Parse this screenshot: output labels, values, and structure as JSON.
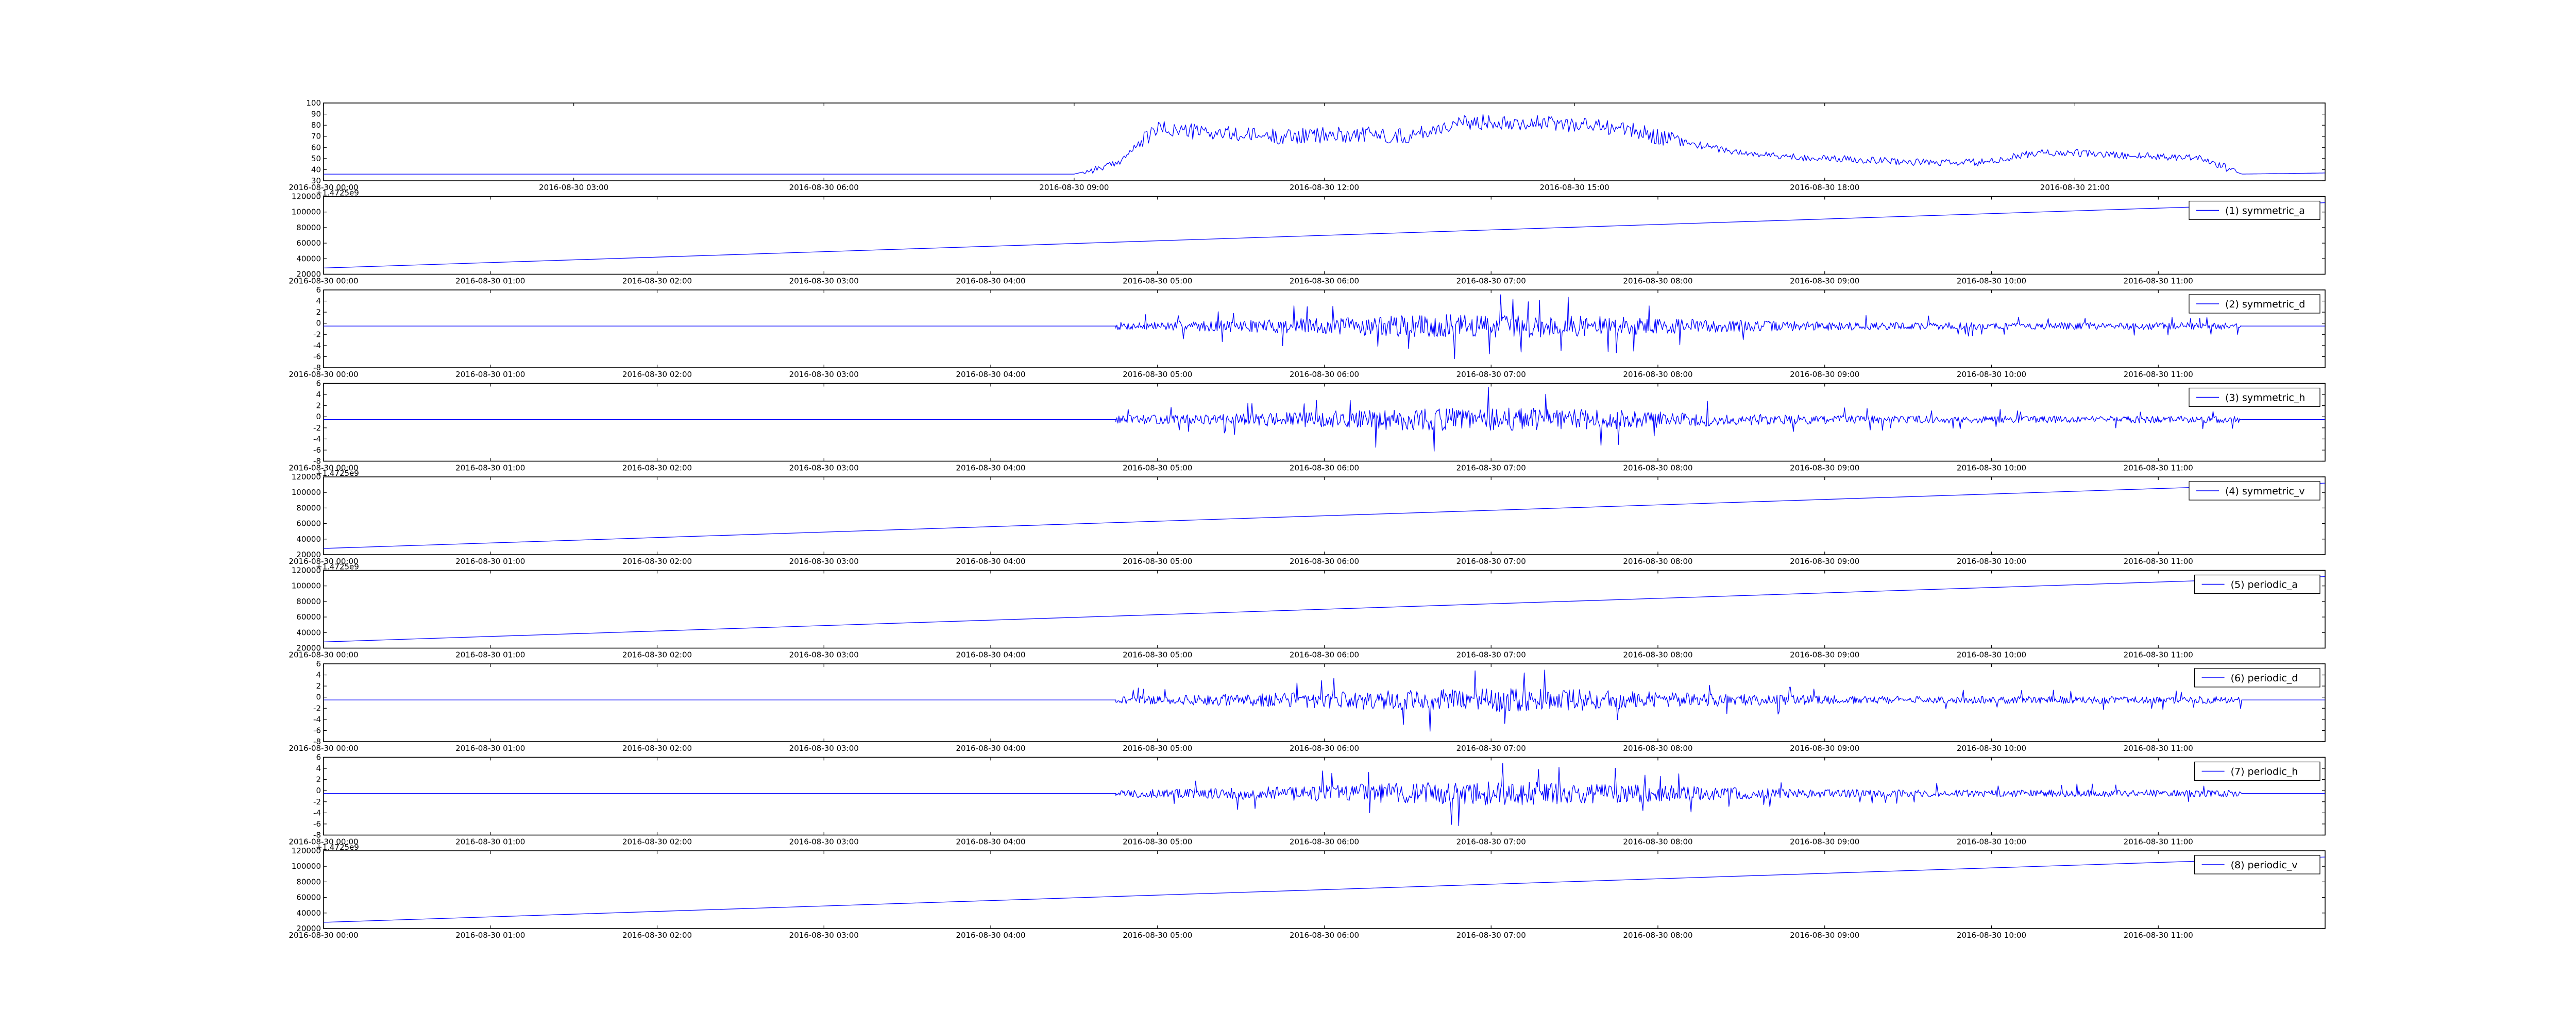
{
  "chart_data": [
    {
      "type": "line",
      "panel": "0",
      "color": "#0000ff",
      "ylim": [
        30,
        100
      ],
      "yticks": [
        30,
        40,
        50,
        60,
        70,
        80,
        90,
        100
      ],
      "xlim": [
        "2016-08-30 00:00",
        "2016-08-31 00:00"
      ],
      "xticks": [
        "2016-08-30 00:00",
        "2016-08-30 03:00",
        "2016-08-30 06:00",
        "2016-08-30 09:00",
        "2016-08-30 12:00",
        "2016-08-30 15:00",
        "2016-08-30 18:00",
        "2016-08-30 21:00"
      ],
      "legend": "",
      "y_offset_label": "",
      "series": [
        {
          "name": "",
          "x": [
            "2016-08-30 00:00",
            "2016-08-30 09:00",
            "2016-08-30 09:30",
            "2016-08-30 10:00",
            "2016-08-30 10:30",
            "2016-08-30 11:00",
            "2016-08-30 11:30",
            "2016-08-30 12:00",
            "2016-08-30 12:30",
            "2016-08-30 13:00",
            "2016-08-30 13:30",
            "2016-08-30 14:00",
            "2016-08-30 14:30",
            "2016-08-30 15:00",
            "2016-08-30 15:30",
            "2016-08-30 16:00",
            "2016-08-30 16:30",
            "2016-08-30 17:00",
            "2016-08-30 17:30",
            "2016-08-30 18:00",
            "2016-08-30 18:30",
            "2016-08-30 19:00",
            "2016-08-30 19:30",
            "2016-08-30 20:00",
            "2016-08-30 20:30",
            "2016-08-30 21:00",
            "2016-08-30 21:30",
            "2016-08-30 22:00",
            "2016-08-30 22:30",
            "2016-08-30 23:00",
            "2016-08-31 00:00"
          ],
          "y": [
            36,
            36,
            45,
            77,
            74,
            71,
            70,
            71,
            72,
            70,
            80,
            84,
            82,
            81,
            78,
            70,
            62,
            55,
            52,
            50,
            49,
            47,
            46,
            47,
            55,
            55,
            53,
            52,
            51,
            36,
            37
          ],
          "noise_amplitude": 6
        }
      ]
    },
    {
      "type": "line",
      "panel": "1",
      "color": "#0000ff",
      "ylim": [
        20000,
        120000
      ],
      "yticks": [
        20000,
        40000,
        60000,
        80000,
        100000,
        120000
      ],
      "xlim": [
        "2016-08-30 00:00",
        "2016-08-30 12:00"
      ],
      "xticks": [
        "2016-08-30 00:00",
        "2016-08-30 01:00",
        "2016-08-30 02:00",
        "2016-08-30 03:00",
        "2016-08-30 04:00",
        "2016-08-30 05:00",
        "2016-08-30 06:00",
        "2016-08-30 07:00",
        "2016-08-30 08:00",
        "2016-08-30 09:00",
        "2016-08-30 10:00",
        "2016-08-30 11:00"
      ],
      "legend": "(1) symmetric_a",
      "y_offset_label": "+1.4725e9",
      "series": [
        {
          "name": "(1) symmetric_a",
          "x": [
            "2016-08-30 00:00",
            "2016-08-30 12:00"
          ],
          "y": [
            28000,
            112000
          ]
        }
      ]
    },
    {
      "type": "line",
      "panel": "2",
      "color": "#0000ff",
      "ylim": [
        -8,
        6
      ],
      "yticks": [
        -8,
        -6,
        -4,
        -2,
        0,
        2,
        4,
        6
      ],
      "xlim": [
        "2016-08-30 00:00",
        "2016-08-30 12:00"
      ],
      "xticks": [
        "2016-08-30 00:00",
        "2016-08-30 01:00",
        "2016-08-30 02:00",
        "2016-08-30 03:00",
        "2016-08-30 04:00",
        "2016-08-30 05:00",
        "2016-08-30 06:00",
        "2016-08-30 07:00",
        "2016-08-30 08:00",
        "2016-08-30 09:00",
        "2016-08-30 10:00",
        "2016-08-30 11:00"
      ],
      "legend": "(2) symmetric_d",
      "y_offset_label": "",
      "series": [
        {
          "name": "(2) symmetric_d",
          "baseline": -0.5,
          "noise_start": "2016-08-30 04:45",
          "noise_end": "2016-08-30 11:30",
          "noise_peak": 6,
          "seed": 7
        }
      ]
    },
    {
      "type": "line",
      "panel": "3",
      "color": "#0000ff",
      "ylim": [
        -8,
        6
      ],
      "yticks": [
        -8,
        -6,
        -4,
        -2,
        0,
        2,
        4,
        6
      ],
      "xlim": [
        "2016-08-30 00:00",
        "2016-08-30 12:00"
      ],
      "xticks": [
        "2016-08-30 00:00",
        "2016-08-30 01:00",
        "2016-08-30 02:00",
        "2016-08-30 03:00",
        "2016-08-30 04:00",
        "2016-08-30 05:00",
        "2016-08-30 06:00",
        "2016-08-30 07:00",
        "2016-08-30 08:00",
        "2016-08-30 09:00",
        "2016-08-30 10:00",
        "2016-08-30 11:00"
      ],
      "legend": "(3) symmetric_h",
      "y_offset_label": "",
      "series": [
        {
          "name": "(3) symmetric_h",
          "baseline": -0.5,
          "noise_start": "2016-08-30 04:45",
          "noise_end": "2016-08-30 11:30",
          "noise_peak": 6,
          "seed": 13
        }
      ]
    },
    {
      "type": "line",
      "panel": "4",
      "color": "#0000ff",
      "ylim": [
        20000,
        120000
      ],
      "yticks": [
        20000,
        40000,
        60000,
        80000,
        100000,
        120000
      ],
      "xlim": [
        "2016-08-30 00:00",
        "2016-08-30 12:00"
      ],
      "xticks": [
        "2016-08-30 00:00",
        "2016-08-30 01:00",
        "2016-08-30 02:00",
        "2016-08-30 03:00",
        "2016-08-30 04:00",
        "2016-08-30 05:00",
        "2016-08-30 06:00",
        "2016-08-30 07:00",
        "2016-08-30 08:00",
        "2016-08-30 09:00",
        "2016-08-30 10:00",
        "2016-08-30 11:00"
      ],
      "legend": "(4) symmetric_v",
      "y_offset_label": "+1.4725e9",
      "series": [
        {
          "name": "(4) symmetric_v",
          "x": [
            "2016-08-30 00:00",
            "2016-08-30 12:00"
          ],
          "y": [
            28000,
            112000
          ]
        }
      ]
    },
    {
      "type": "line",
      "panel": "5",
      "color": "#0000ff",
      "ylim": [
        20000,
        120000
      ],
      "yticks": [
        20000,
        40000,
        60000,
        80000,
        100000,
        120000
      ],
      "xlim": [
        "2016-08-30 00:00",
        "2016-08-30 12:00"
      ],
      "xticks": [
        "2016-08-30 00:00",
        "2016-08-30 01:00",
        "2016-08-30 02:00",
        "2016-08-30 03:00",
        "2016-08-30 04:00",
        "2016-08-30 05:00",
        "2016-08-30 06:00",
        "2016-08-30 07:00",
        "2016-08-30 08:00",
        "2016-08-30 09:00",
        "2016-08-30 10:00",
        "2016-08-30 11:00"
      ],
      "legend": "(5) periodic_a",
      "y_offset_label": "+1.4725e9",
      "series": [
        {
          "name": "(5) periodic_a",
          "x": [
            "2016-08-30 00:00",
            "2016-08-30 12:00"
          ],
          "y": [
            28000,
            112000
          ]
        }
      ]
    },
    {
      "type": "line",
      "panel": "6",
      "color": "#0000ff",
      "ylim": [
        -8,
        6
      ],
      "yticks": [
        -8,
        -6,
        -4,
        -2,
        0,
        2,
        4,
        6
      ],
      "xlim": [
        "2016-08-30 00:00",
        "2016-08-30 12:00"
      ],
      "xticks": [
        "2016-08-30 00:00",
        "2016-08-30 01:00",
        "2016-08-30 02:00",
        "2016-08-30 03:00",
        "2016-08-30 04:00",
        "2016-08-30 05:00",
        "2016-08-30 06:00",
        "2016-08-30 07:00",
        "2016-08-30 08:00",
        "2016-08-30 09:00",
        "2016-08-30 10:00",
        "2016-08-30 11:00"
      ],
      "legend": "(6) periodic_d",
      "y_offset_label": "",
      "series": [
        {
          "name": "(6) periodic_d",
          "baseline": -0.5,
          "noise_start": "2016-08-30 04:45",
          "noise_end": "2016-08-30 11:30",
          "noise_peak": 6,
          "seed": 21
        }
      ]
    },
    {
      "type": "line",
      "panel": "7",
      "color": "#0000ff",
      "ylim": [
        -8,
        6
      ],
      "yticks": [
        -8,
        -6,
        -4,
        -2,
        0,
        2,
        4,
        6
      ],
      "xlim": [
        "2016-08-30 00:00",
        "2016-08-30 12:00"
      ],
      "xticks": [
        "2016-08-30 00:00",
        "2016-08-30 01:00",
        "2016-08-30 02:00",
        "2016-08-30 03:00",
        "2016-08-30 04:00",
        "2016-08-30 05:00",
        "2016-08-30 06:00",
        "2016-08-30 07:00",
        "2016-08-30 08:00",
        "2016-08-30 09:00",
        "2016-08-30 10:00",
        "2016-08-30 11:00"
      ],
      "legend": "(7) periodic_h",
      "y_offset_label": "",
      "series": [
        {
          "name": "(7) periodic_h",
          "baseline": -0.5,
          "noise_start": "2016-08-30 04:45",
          "noise_end": "2016-08-30 11:30",
          "noise_peak": 6,
          "seed": 33
        }
      ]
    },
    {
      "type": "line",
      "panel": "8",
      "color": "#0000ff",
      "ylim": [
        20000,
        120000
      ],
      "yticks": [
        20000,
        40000,
        60000,
        80000,
        100000,
        120000
      ],
      "xlim": [
        "2016-08-30 00:00",
        "2016-08-30 12:00"
      ],
      "xticks": [
        "2016-08-30 00:00",
        "2016-08-30 01:00",
        "2016-08-30 02:00",
        "2016-08-30 03:00",
        "2016-08-30 04:00",
        "2016-08-30 05:00",
        "2016-08-30 06:00",
        "2016-08-30 07:00",
        "2016-08-30 08:00",
        "2016-08-30 09:00",
        "2016-08-30 10:00",
        "2016-08-30 11:00"
      ],
      "legend": "(8) periodic_v",
      "y_offset_label": "+1.4725e9",
      "series": [
        {
          "name": "(8) periodic_v",
          "x": [
            "2016-08-30 00:00",
            "2016-08-30 12:00"
          ],
          "y": [
            28000,
            112000
          ]
        }
      ]
    }
  ]
}
